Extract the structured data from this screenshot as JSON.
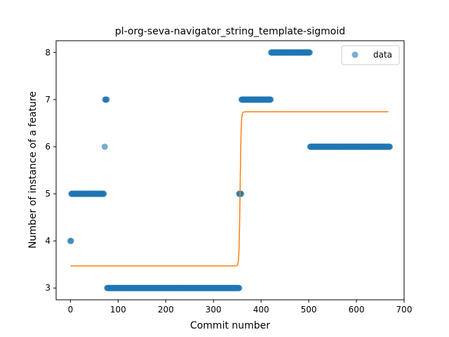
{
  "chart_data": {
    "type": "scatter",
    "title": "pl-org-seva-navigator_string_template-sigmoid",
    "xlabel": "Commit number",
    "ylabel": "Number of instance of a feature",
    "xlim": [
      -30,
      700
    ],
    "ylim": [
      2.75,
      8.25
    ],
    "x_ticks": [
      0,
      100,
      200,
      300,
      400,
      500,
      600,
      700
    ],
    "y_ticks": [
      3,
      4,
      5,
      6,
      7,
      8
    ],
    "legend": {
      "placement": "upper-right",
      "entries": [
        "data"
      ]
    },
    "grid": false,
    "colors": {
      "data": "#1f77b4",
      "fit": "#ff7f0e"
    },
    "series": [
      {
        "name": "data",
        "kind": "scatter",
        "segments": [
          {
            "x_start": 0,
            "x_end": 1,
            "y": 4
          },
          {
            "x_start": 2,
            "x_end": 70,
            "y": 5
          },
          {
            "x_start": 72,
            "x_end": 72,
            "y": 6
          },
          {
            "x_start": 73,
            "x_end": 76,
            "y": 7
          },
          {
            "x_start": 77,
            "x_end": 354,
            "y": 3
          },
          {
            "x_start": 354,
            "x_end": 358,
            "y": 5
          },
          {
            "x_start": 359,
            "x_end": 420,
            "y": 7
          },
          {
            "x_start": 421,
            "x_end": 502,
            "y": 8
          },
          {
            "x_start": 503,
            "x_end": 670,
            "y": 6
          }
        ]
      },
      {
        "kind": "line",
        "model": "sigmoid",
        "x_range": [
          0,
          667
        ],
        "low": 3.47,
        "high": 6.74,
        "midpoint": 356,
        "steepness": 0.9
      }
    ]
  }
}
